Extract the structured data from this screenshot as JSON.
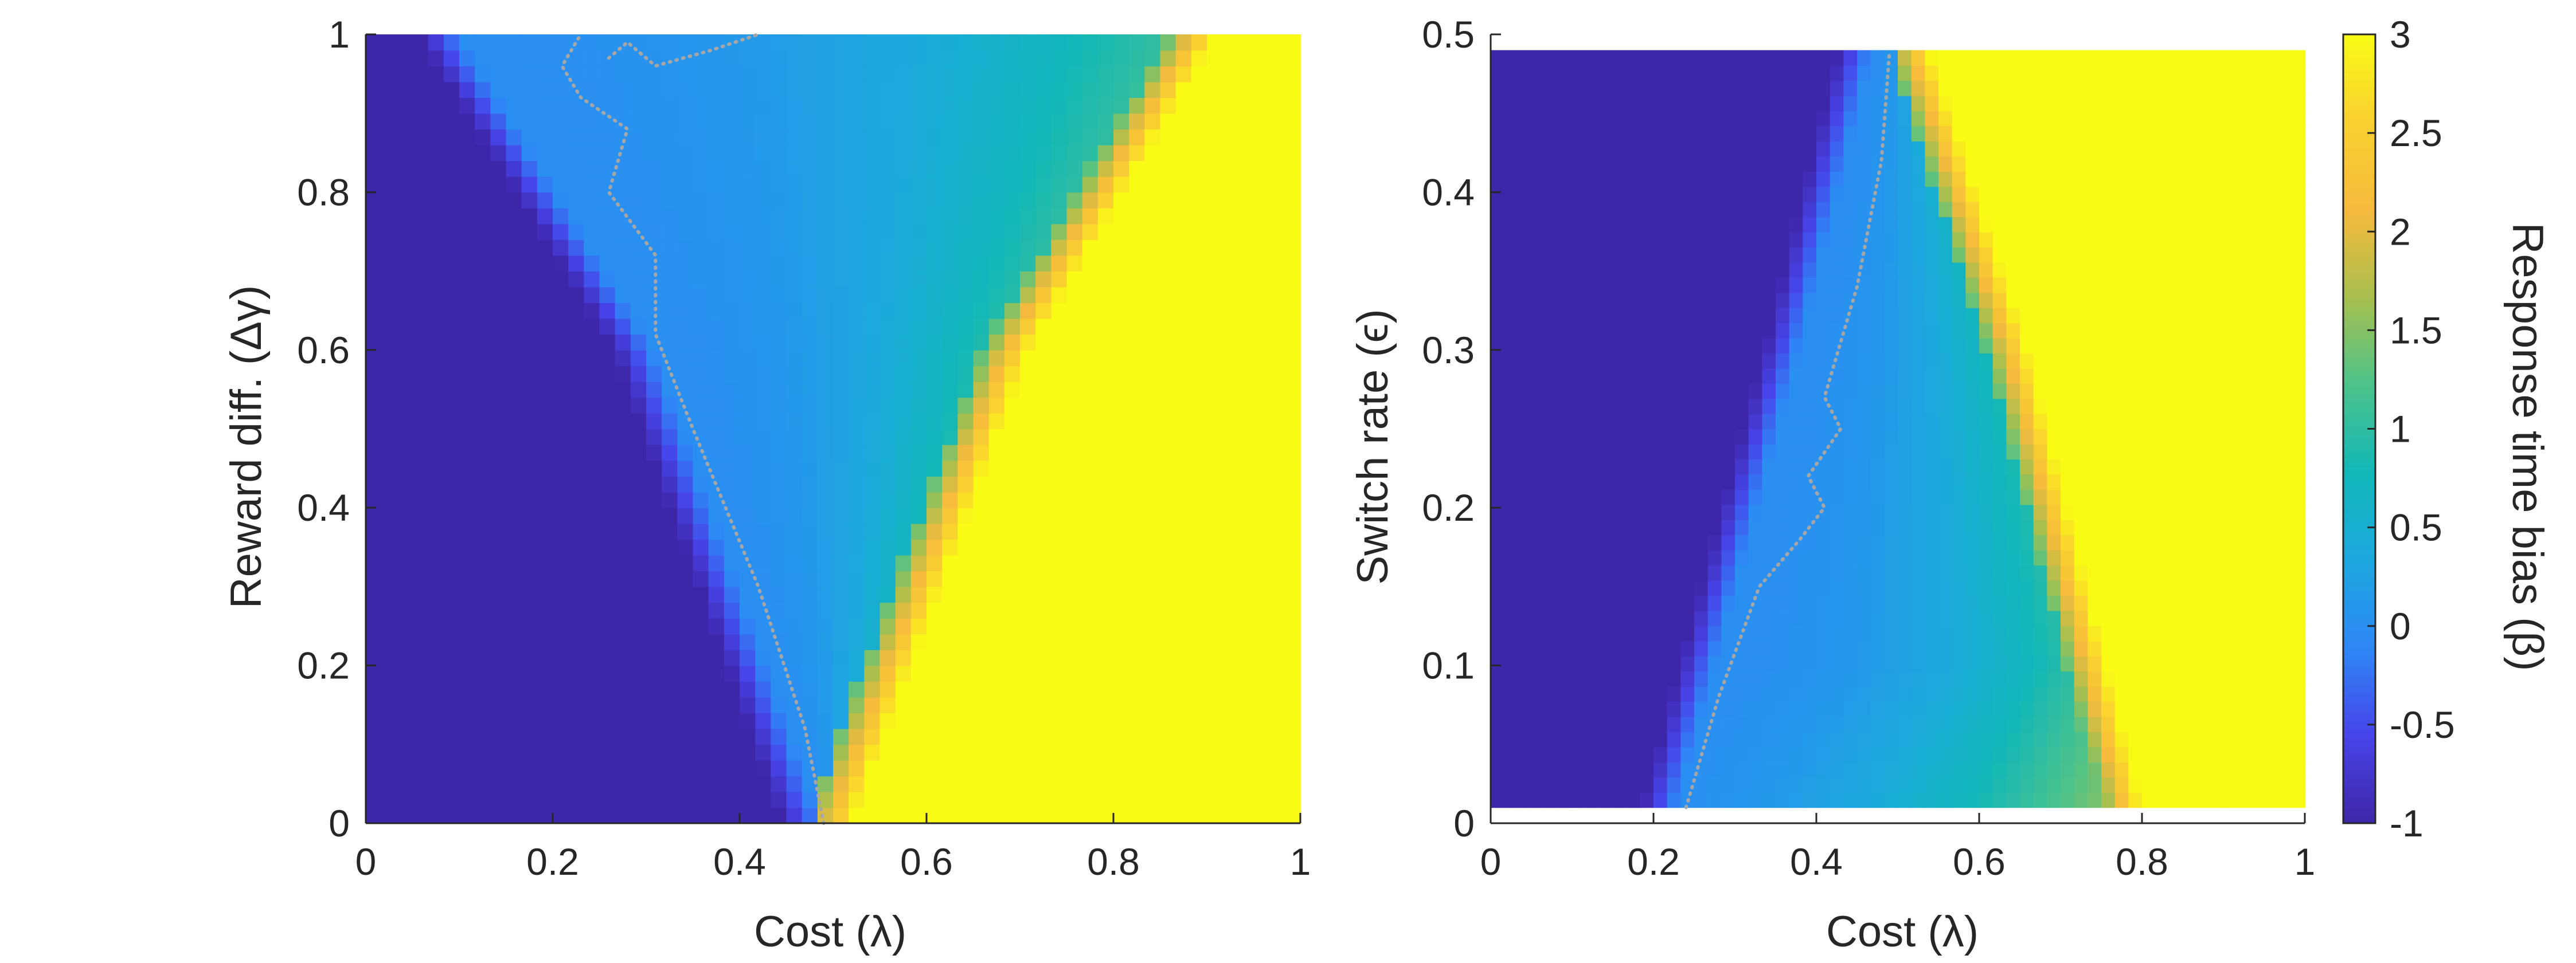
{
  "chart_data": [
    {
      "type": "heatmap",
      "panel": "left",
      "xlabel": "Cost (λ)",
      "ylabel": "Reward diff. (Δγ)",
      "xlim": [
        0,
        1
      ],
      "ylim": [
        0,
        1
      ],
      "xticks": [
        "0",
        "0.2",
        "0.4",
        "0.6",
        "0.8",
        "1"
      ],
      "yticks": [
        "0",
        "0.2",
        "0.4",
        "0.6",
        "0.8",
        "1"
      ],
      "grid": false,
      "description_of_field": {
        "low_region_boundary": [
          [
            0.1,
            1.0
          ],
          [
            0.31,
            0.6
          ],
          [
            0.49,
            0.0
          ]
        ],
        "high_region_boundary": [
          [
            0.91,
            1.0
          ],
          [
            0.71,
            0.6
          ],
          [
            0.52,
            0.0
          ]
        ],
        "low_value": -1,
        "plateau_value": 0,
        "high_value": 3
      },
      "contour": [
        [
          0.49,
          0.0
        ],
        [
          0.47,
          0.12
        ],
        [
          0.42,
          0.3
        ],
        [
          0.35,
          0.5
        ],
        [
          0.31,
          0.62
        ],
        [
          0.31,
          0.72
        ],
        [
          0.26,
          0.8
        ],
        [
          0.28,
          0.88
        ],
        [
          0.23,
          0.92
        ],
        [
          0.21,
          0.96
        ],
        [
          0.23,
          1.0
        ]
      ],
      "contour_top": [
        [
          0.26,
          0.97
        ],
        [
          0.28,
          0.99
        ],
        [
          0.31,
          0.96
        ],
        [
          0.37,
          0.98
        ],
        [
          0.42,
          1.0
        ]
      ]
    },
    {
      "type": "heatmap",
      "panel": "right",
      "xlabel": "Cost (λ)",
      "ylabel": "Switch rate (ϵ)",
      "xlim": [
        0,
        1
      ],
      "ylim": [
        0,
        0.5
      ],
      "xticks": [
        "0",
        "0.2",
        "0.4",
        "0.6",
        "0.8",
        "1"
      ],
      "yticks": [
        "0",
        "0.1",
        "0.2",
        "0.3",
        "0.4",
        "0.5"
      ],
      "grid": false,
      "data_extent": {
        "y": [
          0.01,
          0.49
        ]
      },
      "description_of_field": {
        "low_region_boundary": [
          [
            0.47,
            0.49
          ],
          [
            0.38,
            0.3
          ],
          [
            0.23,
            0.01
          ]
        ],
        "high_region_boundary": [
          [
            0.54,
            0.49
          ],
          [
            0.66,
            0.3
          ],
          [
            0.8,
            0.01
          ]
        ],
        "low_value": -1,
        "plateau_value": 0,
        "high_value": 3
      },
      "contour": [
        [
          0.24,
          0.01
        ],
        [
          0.28,
          0.08
        ],
        [
          0.33,
          0.15
        ],
        [
          0.38,
          0.18
        ],
        [
          0.41,
          0.2
        ],
        [
          0.39,
          0.22
        ],
        [
          0.43,
          0.25
        ],
        [
          0.41,
          0.27
        ],
        [
          0.45,
          0.34
        ],
        [
          0.48,
          0.42
        ],
        [
          0.49,
          0.49
        ]
      ]
    }
  ],
  "colorbar": {
    "label": "Response time bias (β)",
    "min": -1,
    "max": 3,
    "ticks": [
      "-1",
      "-0.5",
      "0",
      "0.5",
      "1",
      "1.5",
      "2",
      "2.5",
      "3"
    ],
    "colormap": "parula",
    "colors": [
      "#3e26a8",
      "#4744e9",
      "#2e87f7",
      "#1ca8df",
      "#12b7b8",
      "#4cc38a",
      "#a8bf4d",
      "#f7ba3c",
      "#f9d030",
      "#f9fb15"
    ]
  }
}
